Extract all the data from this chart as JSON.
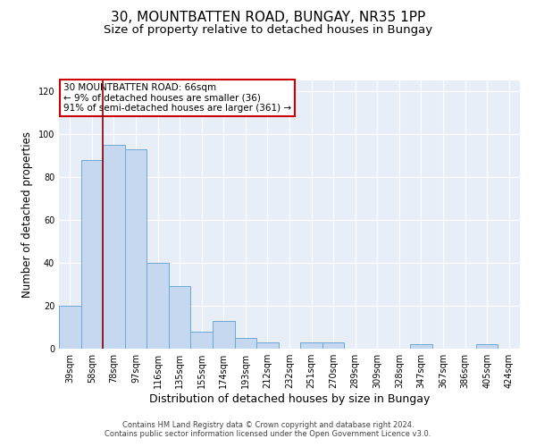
{
  "title_line1": "30, MOUNTBATTEN ROAD, BUNGAY, NR35 1PP",
  "title_line2": "Size of property relative to detached houses in Bungay",
  "xlabel": "Distribution of detached houses by size in Bungay",
  "ylabel": "Number of detached properties",
  "categories": [
    "39sqm",
    "58sqm",
    "78sqm",
    "97sqm",
    "116sqm",
    "135sqm",
    "155sqm",
    "174sqm",
    "193sqm",
    "212sqm",
    "232sqm",
    "251sqm",
    "270sqm",
    "289sqm",
    "309sqm",
    "328sqm",
    "347sqm",
    "367sqm",
    "386sqm",
    "405sqm",
    "424sqm"
  ],
  "values": [
    20,
    88,
    95,
    93,
    40,
    29,
    8,
    13,
    5,
    3,
    0,
    3,
    3,
    0,
    0,
    0,
    2,
    0,
    0,
    2,
    0
  ],
  "bar_color": "#c5d8f0",
  "bar_edge_color": "#6aaad4",
  "background_color": "#e8eef8",
  "vline_x": 1.5,
  "vline_color": "#8b0000",
  "annotation_text": "30 MOUNTBATTEN ROAD: 66sqm\n← 9% of detached houses are smaller (36)\n91% of semi-detached houses are larger (361) →",
  "annotation_box_color": "white",
  "annotation_box_edge": "#cc0000",
  "ylim": [
    0,
    125
  ],
  "yticks": [
    0,
    20,
    40,
    60,
    80,
    100,
    120
  ],
  "footer_text": "Contains HM Land Registry data © Crown copyright and database right 2024.\nContains public sector information licensed under the Open Government Licence v3.0.",
  "title1_fontsize": 11,
  "title2_fontsize": 9.5,
  "xlabel_fontsize": 9,
  "ylabel_fontsize": 8.5,
  "tick_fontsize": 7,
  "annotation_fontsize": 7.5
}
